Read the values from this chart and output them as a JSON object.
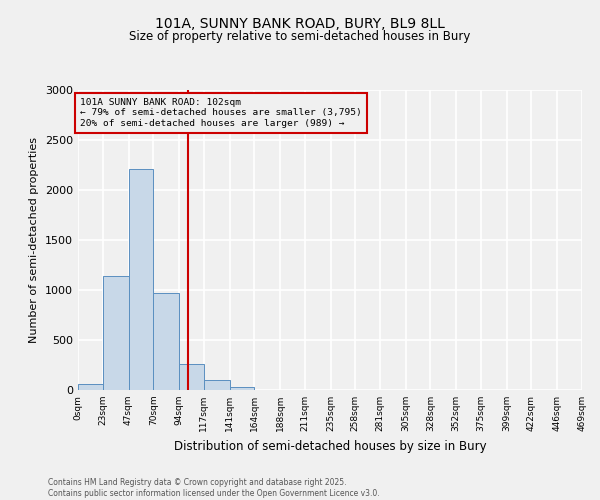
{
  "title": "101A, SUNNY BANK ROAD, BURY, BL9 8LL",
  "subtitle": "Size of property relative to semi-detached houses in Bury",
  "xlabel": "Distribution of semi-detached houses by size in Bury",
  "ylabel": "Number of semi-detached properties",
  "bin_edges": [
    0,
    23,
    47,
    70,
    94,
    117,
    141,
    164,
    188,
    211,
    235,
    258,
    281,
    305,
    328,
    352,
    375,
    399,
    422,
    446,
    469
  ],
  "bin_counts": [
    60,
    1140,
    2210,
    970,
    265,
    105,
    35,
    5,
    2,
    0,
    0,
    0,
    0,
    0,
    0,
    0,
    0,
    0,
    0,
    0
  ],
  "bar_color": "#c8d8e8",
  "bar_edge_color": "#5a8fc0",
  "property_size": 102,
  "vline_color": "#cc0000",
  "annotation_line1": "101A SUNNY BANK ROAD: 102sqm",
  "annotation_line2": "← 79% of semi-detached houses are smaller (3,795)",
  "annotation_line3": "20% of semi-detached houses are larger (989) →",
  "annotation_box_edgecolor": "#cc0000",
  "ylim": [
    0,
    3000
  ],
  "yticks": [
    0,
    500,
    1000,
    1500,
    2000,
    2500,
    3000
  ],
  "background_color": "#f0f0f0",
  "grid_color": "#ffffff",
  "footer_line1": "Contains HM Land Registry data © Crown copyright and database right 2025.",
  "footer_line2": "Contains public sector information licensed under the Open Government Licence v3.0."
}
